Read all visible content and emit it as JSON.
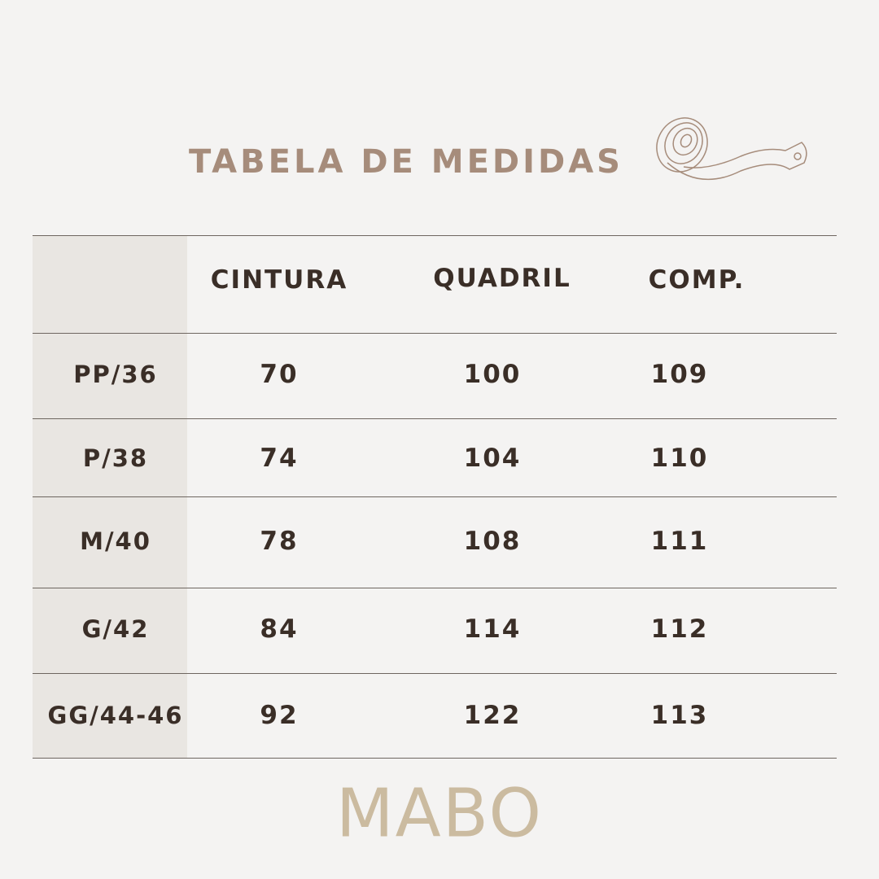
{
  "title": "TABELA DE MEDIDAS",
  "icon": "measuring-tape-icon",
  "table": {
    "headers": [
      "",
      "CINTURA",
      "QUADRIL",
      "COMP."
    ],
    "rows": [
      {
        "size": "PP/36",
        "cintura": "70",
        "quadril": "100",
        "comp": "109"
      },
      {
        "size": "P/38",
        "cintura": "74",
        "quadril": "104",
        "comp": "110"
      },
      {
        "size": "M/40",
        "cintura": "78",
        "quadril": "108",
        "comp": "111"
      },
      {
        "size": "G/42",
        "cintura": "84",
        "quadril": "114",
        "comp": "112"
      },
      {
        "size": "GG/44-46",
        "cintura": "92",
        "quadril": "122",
        "comp": "113"
      }
    ]
  },
  "brand": "MABO",
  "colors": {
    "background": "#f4f3f2",
    "title": "#a68c7b",
    "text": "#3a2e27",
    "size_column": "#e9e6e2",
    "logo": "#cbbba0"
  }
}
